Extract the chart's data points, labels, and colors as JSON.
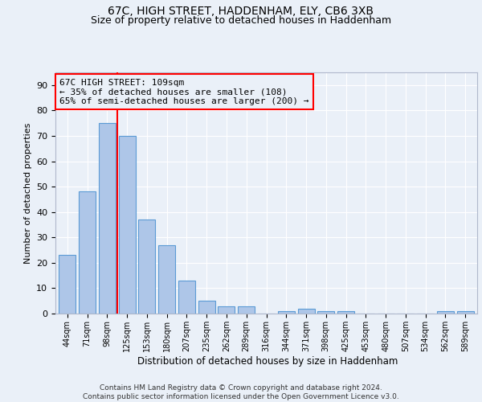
{
  "title1": "67C, HIGH STREET, HADDENHAM, ELY, CB6 3XB",
  "title2": "Size of property relative to detached houses in Haddenham",
  "xlabel": "Distribution of detached houses by size in Haddenham",
  "ylabel": "Number of detached properties",
  "footer": "Contains HM Land Registry data © Crown copyright and database right 2024.\nContains public sector information licensed under the Open Government Licence v3.0.",
  "bar_labels": [
    "44sqm",
    "71sqm",
    "98sqm",
    "125sqm",
    "153sqm",
    "180sqm",
    "207sqm",
    "235sqm",
    "262sqm",
    "289sqm",
    "316sqm",
    "344sqm",
    "371sqm",
    "398sqm",
    "425sqm",
    "453sqm",
    "480sqm",
    "507sqm",
    "534sqm",
    "562sqm",
    "589sqm"
  ],
  "bar_values": [
    23,
    48,
    75,
    70,
    37,
    27,
    13,
    5,
    3,
    3,
    0,
    1,
    2,
    1,
    1,
    0,
    0,
    0,
    0,
    1,
    1
  ],
  "bar_color": "#aec6e8",
  "bar_edge_color": "#5b9bd5",
  "red_line_x": 2.5,
  "annotation_title": "67C HIGH STREET: 109sqm",
  "annotation_line2": "← 35% of detached houses are smaller (108)",
  "annotation_line3": "65% of semi-detached houses are larger (200) →",
  "ylim": [
    0,
    95
  ],
  "yticks": [
    0,
    10,
    20,
    30,
    40,
    50,
    60,
    70,
    80,
    90
  ],
  "bg_color": "#eaf0f8",
  "grid_color": "#ffffff",
  "title_fontsize": 10,
  "subtitle_fontsize": 9
}
